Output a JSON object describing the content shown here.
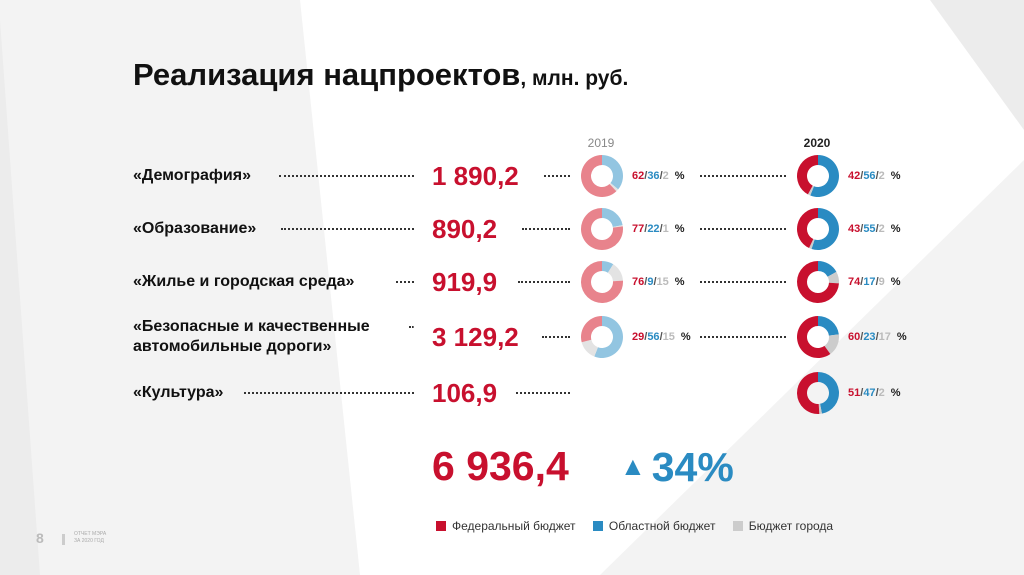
{
  "title": {
    "main": "Реализация нацпроектов",
    "unit": ", млн. руб."
  },
  "colors": {
    "federal": "#c8102e",
    "regional": "#2a8bc2",
    "city": "#cccccc",
    "federal_2019": "#e8838c",
    "regional_2019": "#92c5e1",
    "city_2019": "#e3e3e3",
    "accent_blue": "#2a8bc2"
  },
  "icons": {
    "growth_arrow": "▲"
  },
  "chart_data": {
    "type": "pie",
    "title": "Реализация нацпроектов, млн. руб.",
    "years": [
      "2019",
      "2020"
    ],
    "percent_sign": "%",
    "series_names": [
      "Федеральный бюджет",
      "Областной бюджет",
      "Бюджет города"
    ],
    "rows": [
      {
        "label": "«Демография»",
        "value": "1 890,2",
        "y2019": [
          62,
          36,
          2
        ],
        "y2020": [
          42,
          56,
          2
        ]
      },
      {
        "label": "«Образование»",
        "value": "890,2",
        "y2019": [
          77,
          22,
          1
        ],
        "y2020": [
          43,
          55,
          2
        ]
      },
      {
        "label": "«Жилье и городская среда»",
        "value": "919,9",
        "y2019": [
          76,
          9,
          15
        ],
        "y2020": [
          74,
          17,
          9
        ]
      },
      {
        "label": "«Безопасные и качественные\nавтомобильные дороги»",
        "value": "3 129,2",
        "y2019": [
          29,
          56,
          15
        ],
        "y2020": [
          60,
          23,
          17
        ]
      },
      {
        "label": "«Культура»",
        "value": "106,9",
        "y2019": null,
        "y2020": [
          51,
          47,
          2
        ]
      }
    ],
    "total": "6 936,4",
    "growth": "34%"
  },
  "legend": [
    {
      "label": "Федеральный бюджет",
      "color": "#c8102e"
    },
    {
      "label": "Областной бюджет",
      "color": "#2a8bc2"
    },
    {
      "label": "Бюджет города",
      "color": "#cccccc"
    }
  ],
  "footer": {
    "page_number": "8",
    "note_line1": "ОТЧЕТ МЭРА",
    "note_line2": "ЗА 2020 ГОД"
  }
}
